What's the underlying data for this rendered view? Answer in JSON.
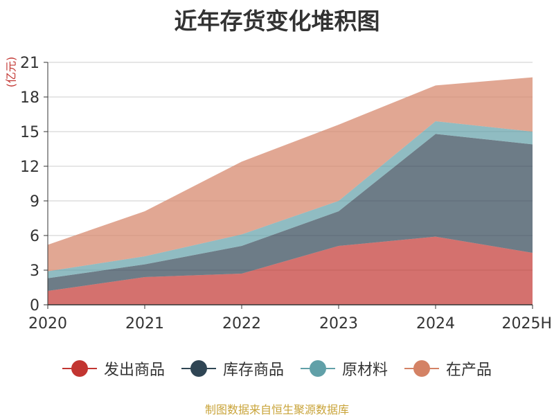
{
  "chart_data": {
    "type": "area",
    "stacked": true,
    "title": "近年存货变化堆积图",
    "y_unit": "(亿元)",
    "x": [
      "2020",
      "2021",
      "2022",
      "2023",
      "2024",
      "2025H"
    ],
    "ylim": [
      0,
      21
    ],
    "yticks": [
      0,
      3,
      6,
      9,
      12,
      15,
      18,
      21
    ],
    "grid": true,
    "legend_position": "bottom",
    "series": [
      {
        "name": "发出商品",
        "color": "#c23531",
        "values": [
          1.2,
          2.4,
          2.7,
          5.1,
          5.9,
          4.5
        ]
      },
      {
        "name": "库存商品",
        "color": "#2f4554",
        "values": [
          1.1,
          1.1,
          2.4,
          3.0,
          8.9,
          9.4
        ]
      },
      {
        "name": "原材料",
        "color": "#61a0a8",
        "values": [
          0.6,
          0.7,
          1.0,
          0.9,
          1.1,
          1.1
        ]
      },
      {
        "name": "在产品",
        "color": "#d48265",
        "values": [
          2.3,
          3.9,
          6.3,
          6.6,
          3.1,
          4.7
        ]
      }
    ]
  },
  "source": "制图数据来自恒生聚源数据库"
}
